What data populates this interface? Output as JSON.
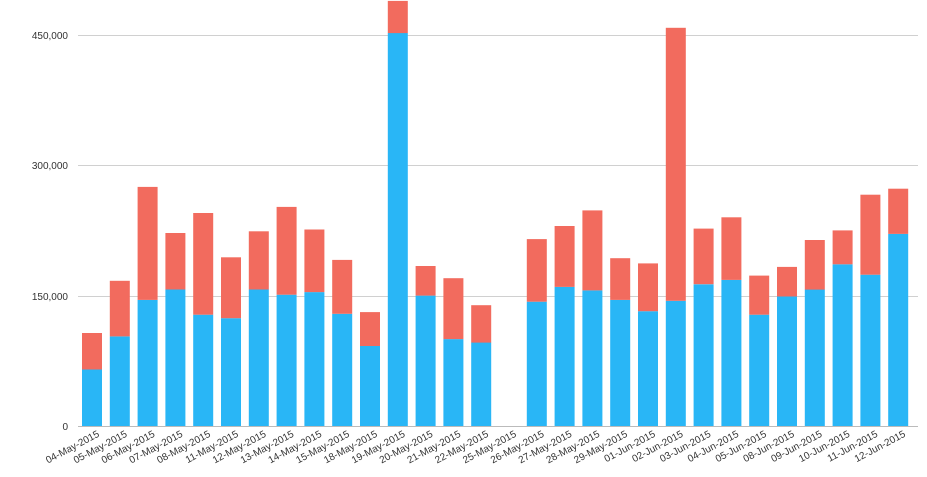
{
  "chart_data": {
    "type": "bar",
    "stacked": true,
    "categories": [
      "04-May-2015",
      "05-May-2015",
      "06-May-2015",
      "07-May-2015",
      "08-May-2015",
      "11-May-2015",
      "12-May-2015",
      "13-May-2015",
      "14-May-2015",
      "15-May-2015",
      "18-May-2015",
      "19-May-2015",
      "20-May-2015",
      "21-May-2015",
      "22-May-2015",
      "25-May-2015",
      "26-May-2015",
      "27-May-2015",
      "28-May-2015",
      "29-May-2015",
      "01-Jun-2015",
      "02-Jun-2015",
      "03-Jun-2015",
      "04-Jun-2015",
      "05-Jun-2015",
      "08-Jun-2015",
      "09-Jun-2015",
      "10-Jun-2015",
      "11-Jun-2015",
      "12-Jun-2015"
    ],
    "series": [
      {
        "color": "#29b6f6",
        "values": [
          65000,
          103000,
          145000,
          157000,
          128000,
          124000,
          157000,
          151000,
          154000,
          129000,
          92000,
          452000,
          150000,
          100000,
          96000,
          0,
          143000,
          160000,
          156000,
          145000,
          132000,
          144000,
          163000,
          168000,
          128000,
          149000,
          157000,
          186000,
          174000,
          221000
        ]
      },
      {
        "color": "#f26b5e",
        "values": [
          42000,
          64000,
          130000,
          65000,
          117000,
          70000,
          67000,
          101000,
          72000,
          62000,
          39000,
          37000,
          34000,
          70000,
          43000,
          0,
          72000,
          70000,
          92000,
          48000,
          55000,
          314000,
          64000,
          72000,
          45000,
          34000,
          57000,
          39000,
          92000,
          52000
        ]
      }
    ],
    "yticks": [
      0,
      150000,
      300000,
      450000
    ],
    "ytick_labels": [
      "0",
      "150,000",
      "300,000",
      "450,000"
    ],
    "ylim": [
      0,
      490000
    ],
    "grid": true,
    "legend": "none",
    "title": "",
    "xlabel": "",
    "ylabel": ""
  }
}
